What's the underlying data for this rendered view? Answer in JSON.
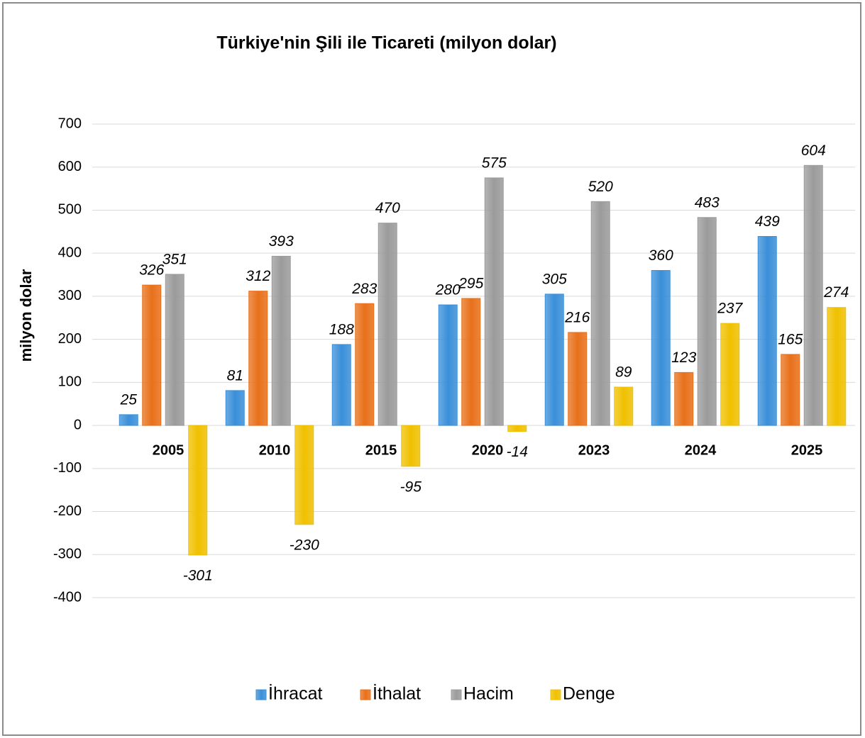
{
  "chart_data": {
    "type": "bar",
    "title": "Türkiye'nin Şili ile Ticareti (milyon dolar)",
    "y_label": "milyon dolar",
    "categories": [
      "2005",
      "2010",
      "2015",
      "2020",
      "2023",
      "2024",
      "2025"
    ],
    "series": [
      {
        "name": "İhracat",
        "color": "#3a8fd9",
        "values": [
          25,
          81,
          188,
          280,
          305,
          360,
          439
        ]
      },
      {
        "name": "İthalat",
        "color": "#e8701a",
        "values": [
          326,
          312,
          283,
          295,
          216,
          123,
          165
        ]
      },
      {
        "name": "Hacim",
        "color": "#9b9b9b",
        "values": [
          351,
          393,
          470,
          575,
          520,
          483,
          604
        ]
      },
      {
        "name": "Denge",
        "color": "#f0c000",
        "values": [
          -301,
          -230,
          -95,
          -14,
          89,
          237,
          274
        ]
      }
    ],
    "ylim": [
      -400,
      700
    ],
    "yticks": [
      -400,
      -300,
      -200,
      -100,
      0,
      100,
      200,
      300,
      400,
      500,
      600,
      700
    ],
    "grid": true,
    "legend": "bottom"
  }
}
